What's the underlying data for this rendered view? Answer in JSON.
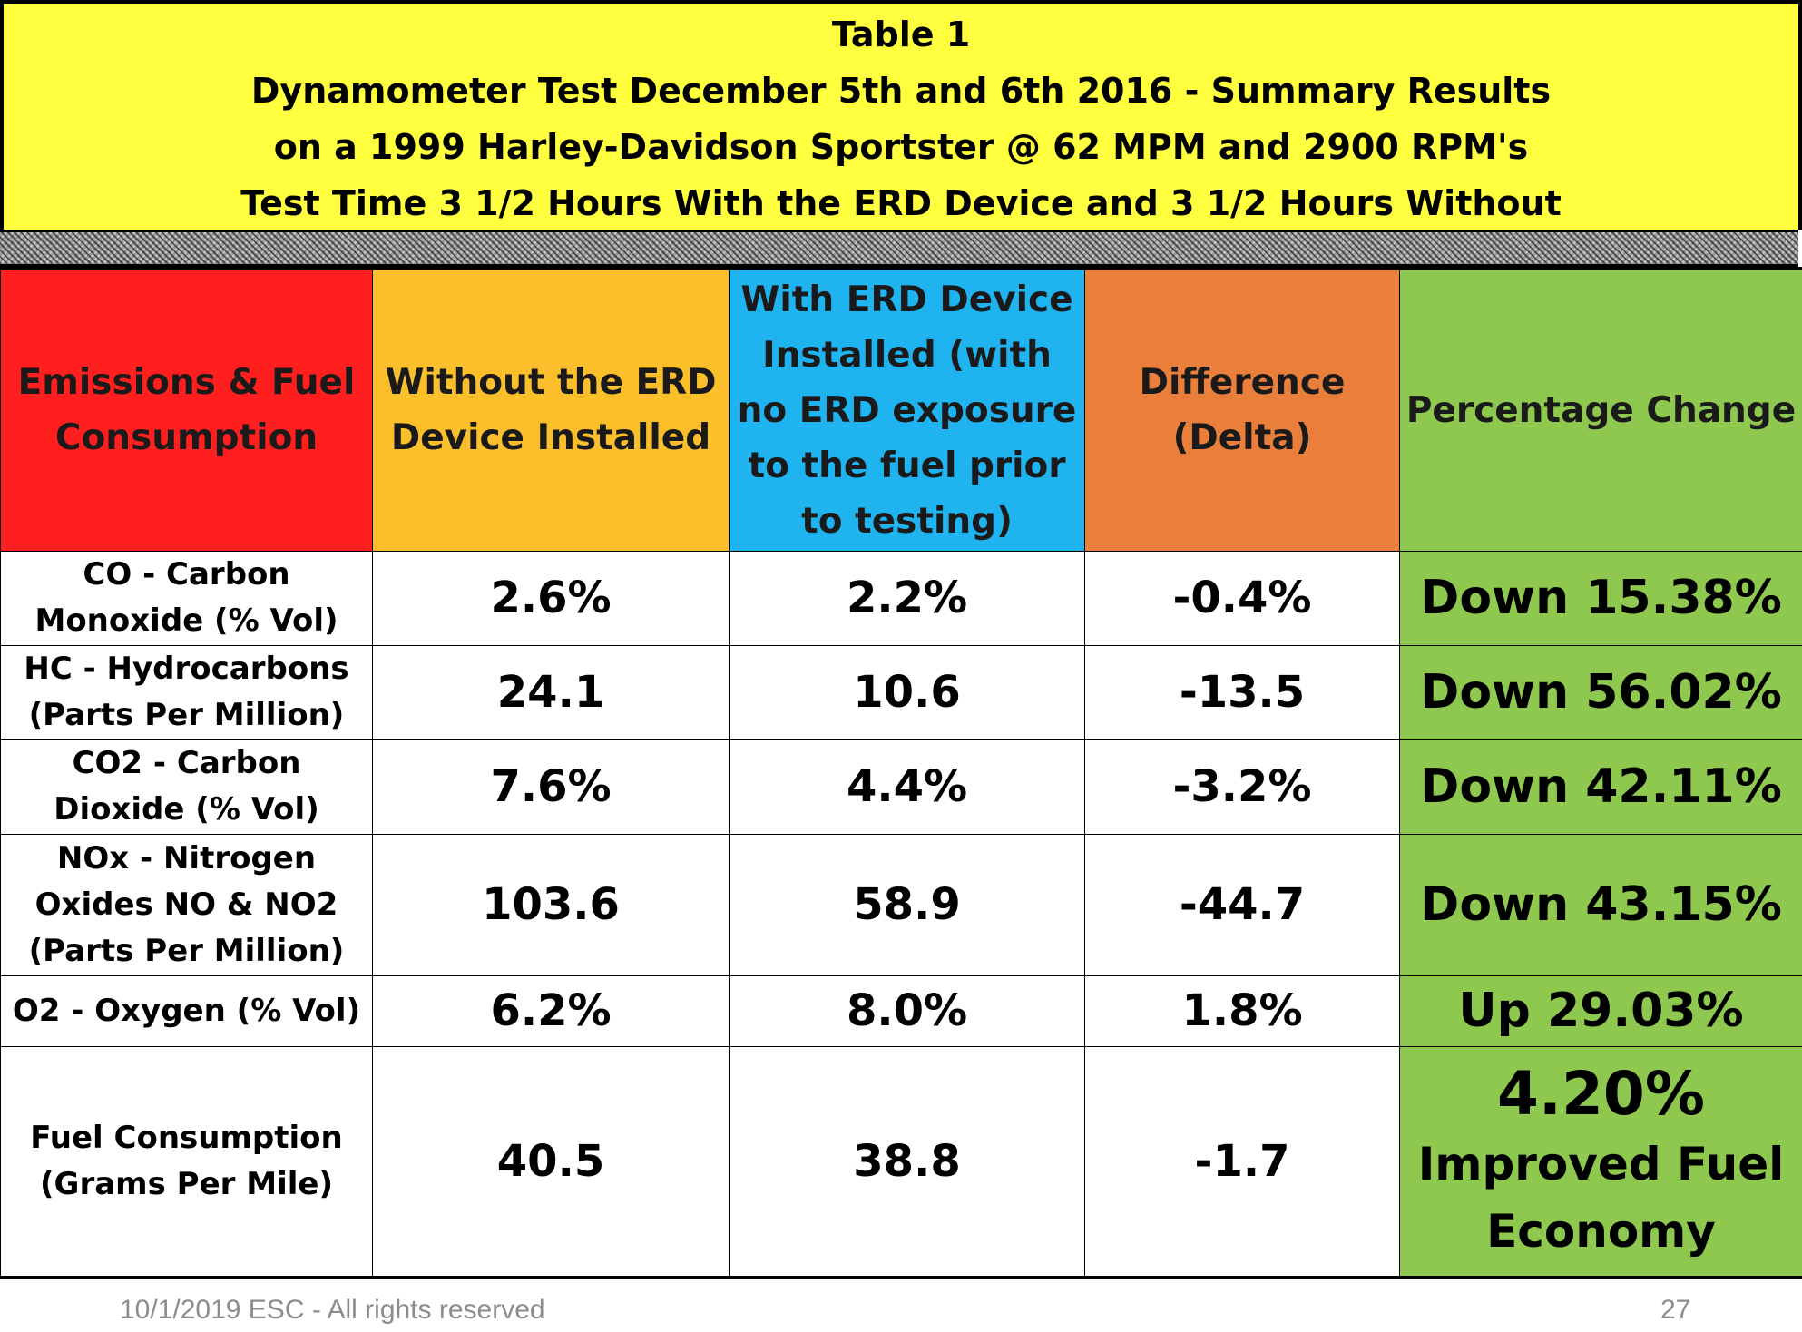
{
  "title": {
    "line1": "Table 1",
    "line2": "Dynamometer Test December 5th and 6th 2016 - Summary Results",
    "line3": "on a 1999 Harley-Davidson Sportster @ 62 MPM and 2900 RPM's",
    "line4": "Test Time 3 1/2 Hours With the ERD Device and 3 1/2 Hours Without",
    "background": "#ffff40"
  },
  "table": {
    "headers": [
      {
        "text": "Emissions & Fuel Consumption",
        "color": "#ff1f1f"
      },
      {
        "text": "Without the ERD Device Installed",
        "color": "#fcbf2c"
      },
      {
        "text": "With ERD Device Installed (with no ERD exposure to the fuel prior to testing)",
        "color": "#1fb3f0"
      },
      {
        "text": "Difference (Delta)",
        "color": "#ea7f3c"
      },
      {
        "text": "Percentage Change",
        "color": "#8fc84e"
      }
    ],
    "rows": [
      {
        "label": "CO - Carbon Monoxide (% Vol)",
        "without": "2.6%",
        "with": "2.2%",
        "delta": "-0.4%",
        "change": "Down 15.38%"
      },
      {
        "label": "HC - Hydrocarbons (Parts Per Million)",
        "without": "24.1",
        "with": "10.6",
        "delta": "-13.5",
        "change": "Down 56.02%"
      },
      {
        "label": "CO2 - Carbon Dioxide (% Vol)",
        "without": "7.6%",
        "with": "4.4%",
        "delta": "-3.2%",
        "change": "Down 42.11%"
      },
      {
        "label": "NOx - Nitrogen Oxides NO & NO2 (Parts Per Million)",
        "without": "103.6",
        "with": "58.9",
        "delta": "-44.7",
        "change": "Down 43.15%"
      },
      {
        "label": "O2 - Oxygen (% Vol)",
        "without": "6.2%",
        "with": "8.0%",
        "delta": "1.8%",
        "change": "Up 29.03%"
      },
      {
        "label": "Fuel Consumption (Grams Per Mile)",
        "without": "40.5",
        "with": "38.8",
        "delta": "-1.7",
        "change_value": "4.20%",
        "change_text": "Improved Fuel Economy"
      }
    ]
  },
  "footer": {
    "left": "10/1/2019   ESC - All rights reserved",
    "page_number": "27"
  }
}
